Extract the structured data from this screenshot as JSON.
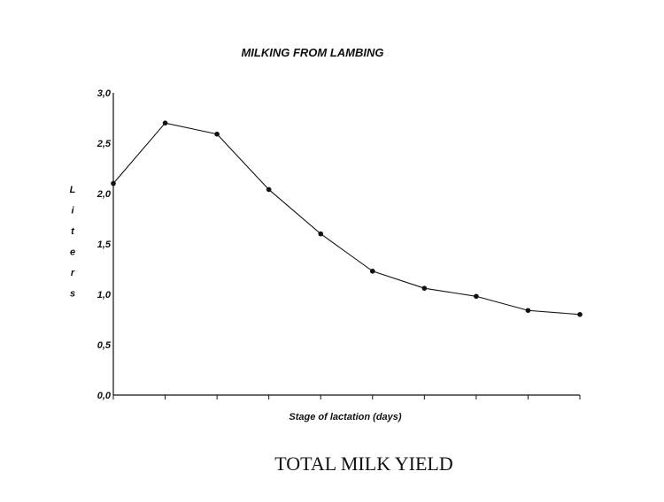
{
  "chart_data": {
    "type": "line",
    "title": "MILKING FROM LAMBING",
    "xlabel": "Stage of lactation (days)",
    "ylabel": "Liters",
    "caption": "TOTAL MILK YIELD",
    "ylim": [
      0,
      3.0
    ],
    "yticks": [
      "0,0",
      "0,5",
      "1,0",
      "1,5",
      "2,0",
      "2,5",
      "3,0"
    ],
    "x": [
      0,
      1,
      2,
      3,
      4,
      5,
      6,
      7,
      8,
      9
    ],
    "series": [
      {
        "values": [
          2.1,
          2.7,
          2.59,
          2.04,
          1.6,
          1.23,
          1.06,
          0.98,
          0.84,
          0.8
        ]
      }
    ],
    "grid": false,
    "line_color": "#111111"
  }
}
